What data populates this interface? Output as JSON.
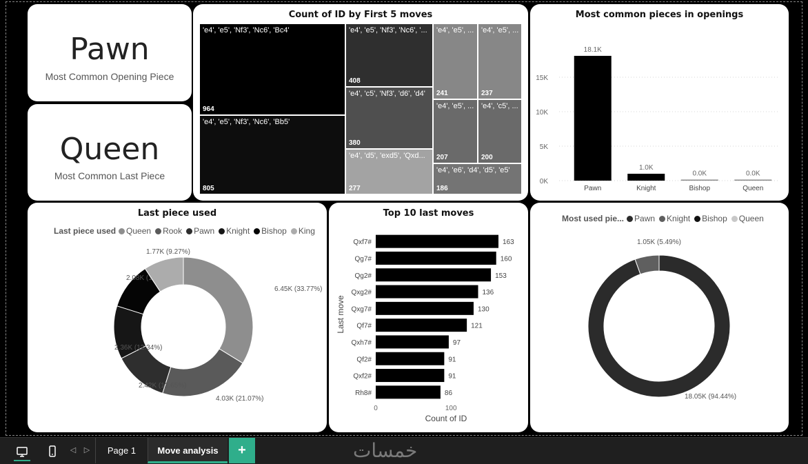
{
  "kpis": [
    {
      "value": "Pawn",
      "label": "Most Common Opening Piece"
    },
    {
      "value": "Queen",
      "label": "Most Common Last Piece"
    }
  ],
  "treemap": {
    "title": "Count of ID by First 5 moves",
    "cells": [
      {
        "label": "'e4', 'e5', 'Nf3', 'Nc6', 'Bc4'",
        "value": "964",
        "color": "#000000"
      },
      {
        "label": "'e4', 'e5', 'Nf3', 'Nc6', 'Bb5'",
        "value": "805",
        "color": "#0d0d0d"
      },
      {
        "label": "'e4', 'e5', 'Nf3', 'Nc6', '...",
        "value": "408",
        "color": "#2f2f2f"
      },
      {
        "label": "'e4', 'c5', 'Nf3', 'd6', 'd4'",
        "value": "380",
        "color": "#4f4f4f"
      },
      {
        "label": "'e4', 'd5', 'exd5', 'Qxd...",
        "value": "277",
        "color": "#a3a3a3"
      },
      {
        "label": "'e4', 'e5', ...",
        "value": "241",
        "color": "#878787"
      },
      {
        "label": "'e4', 'e5', ...",
        "value": "237",
        "color": "#878787"
      },
      {
        "label": "'e4', 'e5', ...",
        "value": "207",
        "color": "#6a6a6a"
      },
      {
        "label": "'e4', 'c5', ...",
        "value": "200",
        "color": "#6a6a6a"
      },
      {
        "label": "'e4', 'e6', 'd4', 'd5', 'e5'",
        "value": "186",
        "color": "#747474"
      }
    ]
  },
  "chart_data": [
    {
      "type": "bar",
      "title": "Most common pieces in openings",
      "categories": [
        "Pawn",
        "Knight",
        "Bishop",
        "Queen"
      ],
      "values": [
        18100,
        1000,
        0,
        0
      ],
      "data_labels": [
        "18.1K",
        "1.0K",
        "0.0K",
        "0.0K"
      ],
      "y_ticks": [
        "0K",
        "5K",
        "10K",
        "15K"
      ],
      "ylim": [
        0,
        20000
      ],
      "grid": true,
      "color": "#000000"
    },
    {
      "type": "pie",
      "title": "Last piece used",
      "legend_title": "Last piece used",
      "legend_position": "top",
      "donut": true,
      "slices": [
        {
          "name": "Queen",
          "value": 6450,
          "label": "6.45K (33.77%)",
          "color": "#8e8e8e"
        },
        {
          "name": "Rook",
          "value": 4030,
          "label": "4.03K (21.07%)",
          "color": "#5a5a5a"
        },
        {
          "name": "Pawn",
          "value": 2420,
          "label": "2.42K (12.65%)",
          "color": "#2e2e2e"
        },
        {
          "name": "Knight",
          "value": 2360,
          "label": "2.36K (12.34%)",
          "color": "#161616"
        },
        {
          "name": "Bishop",
          "value": 2080,
          "label": "2.08K (10.9%)",
          "color": "#050505"
        },
        {
          "name": "King",
          "value": 1770,
          "label": "1.77K (9.27%)",
          "color": "#acacac"
        }
      ]
    },
    {
      "type": "bar",
      "orientation": "horizontal",
      "title": "Top 10 last moves",
      "xlabel": "Count of ID",
      "ylabel": "Last move",
      "categories": [
        "Qxf7#",
        "Qg7#",
        "Qg2#",
        "Qxg2#",
        "Qxg7#",
        "Qf7#",
        "Qxh7#",
        "Qf2#",
        "Qxf2#",
        "Rh8#"
      ],
      "values": [
        163,
        160,
        153,
        136,
        130,
        121,
        97,
        91,
        91,
        86
      ],
      "x_ticks": [
        "0",
        "100"
      ],
      "xlim": [
        0,
        163
      ],
      "color": "#000000"
    },
    {
      "type": "pie",
      "title": "",
      "legend_title": "Most used pie...",
      "legend_position": "top",
      "donut": true,
      "slices": [
        {
          "name": "Pawn",
          "value": 18050,
          "label": "18.05K (94.44%)",
          "color": "#2b2b2b"
        },
        {
          "name": "Knight",
          "value": 1050,
          "label": "1.05K (5.49%)",
          "color": "#5f5f5f"
        },
        {
          "name": "Bishop",
          "value": 0,
          "label": "",
          "color": "#111111"
        },
        {
          "name": "Queen",
          "value": 0,
          "label": "",
          "color": "#c8c8c8"
        }
      ]
    }
  ],
  "bottom_bar": {
    "pages": [
      "Page 1",
      "Move analysis"
    ],
    "active_page": "Move analysis",
    "add_label": "+",
    "prev_icon": "◁",
    "next_icon": "▷",
    "watermark": "خمسات"
  }
}
